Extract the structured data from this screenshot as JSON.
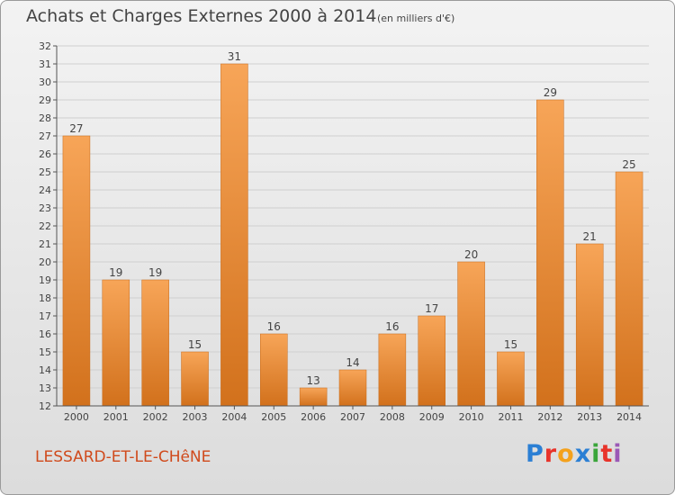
{
  "header": {
    "title": "Achats et Charges Externes 2000 à 2014",
    "subtitle": "(en milliers d'€)"
  },
  "footer": {
    "place": "LESSARD-ET-LE-CHêNE",
    "logo": "Proxiti",
    "logo_colors": [
      "#2b7fd4",
      "#e8332a",
      "#f4a11c",
      "#2b7fd4",
      "#3aa53a",
      "#e8332a",
      "#9b59b6"
    ]
  },
  "colors": {
    "bar_light": "#f7a558",
    "bar_dark": "#d2711c",
    "grid": "#cfcfcf",
    "axis": "#555555",
    "text": "#444444"
  },
  "chart_data": {
    "type": "bar",
    "title": "Achats et Charges Externes 2000 à 2014",
    "subtitle": "(en milliers d'€)",
    "categories": [
      "2000",
      "2001",
      "2002",
      "2003",
      "2004",
      "2005",
      "2006",
      "2007",
      "2008",
      "2009",
      "2010",
      "2011",
      "2012",
      "2013",
      "2014"
    ],
    "values": [
      27,
      19,
      19,
      15,
      31,
      16,
      13,
      14,
      16,
      17,
      20,
      15,
      29,
      21,
      25
    ],
    "ylim": [
      12,
      32
    ],
    "yticks": [
      12,
      13,
      14,
      15,
      16,
      17,
      18,
      19,
      20,
      21,
      22,
      23,
      24,
      25,
      26,
      27,
      28,
      29,
      30,
      31,
      32
    ],
    "grid": true,
    "data_labels": true
  }
}
